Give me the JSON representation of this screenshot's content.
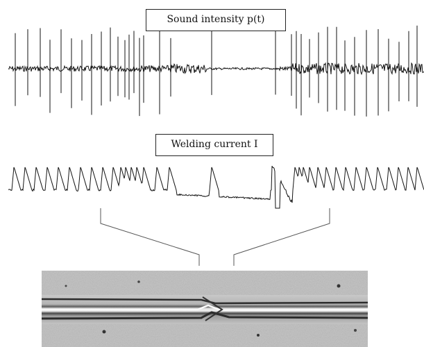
{
  "chart_data": [
    {
      "type": "line",
      "title": "Sound intensity p(t)",
      "xlabel": "",
      "ylabel": "",
      "grid": false,
      "legend": "none",
      "colors": {
        "trace": "#111111"
      }
    },
    {
      "type": "line",
      "title": "Welding current I",
      "xlabel": "",
      "ylabel": "",
      "grid": false,
      "legend": "none",
      "colors": {
        "trace": "#111111"
      }
    }
  ],
  "photo": {
    "description_icon": "weld-seam-photo-icon"
  }
}
